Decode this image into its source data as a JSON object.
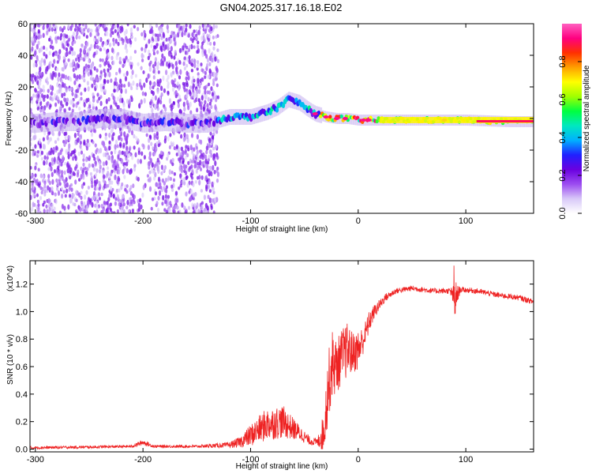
{
  "title": "GN04.2025.317.16.18.E02",
  "chart_data": [
    {
      "type": "heatmap",
      "xlabel": "Height of straight line (km)",
      "ylabel": "Frequency (Hz)",
      "xlim": [
        -305,
        163
      ],
      "ylim": [
        -60,
        60
      ],
      "xticks": [
        -300,
        -200,
        -100,
        0,
        100
      ],
      "yticks": [
        -60,
        -40,
        -20,
        0,
        20,
        40,
        60
      ],
      "colorbar": {
        "label": "Normalized spectral amplitude",
        "range": [
          0,
          1
        ],
        "ticks": [
          0.0,
          0.2,
          0.4,
          0.6,
          0.8
        ],
        "colors": [
          "#ffffff",
          "#d8c8f8",
          "#9c4cf0",
          "#6a00e0",
          "#2020ff",
          "#00b0ff",
          "#00e8c0",
          "#00ff40",
          "#a0ff00",
          "#ffff00",
          "#ffa000",
          "#ff3000",
          "#ff0080",
          "#ff60c0"
        ]
      },
      "ridge": [
        {
          "x": -300,
          "f": -3
        },
        {
          "x": -280,
          "f": -2
        },
        {
          "x": -260,
          "f": -2
        },
        {
          "x": -240,
          "f": 0
        },
        {
          "x": -220,
          "f": 0
        },
        {
          "x": -200,
          "f": -3
        },
        {
          "x": -180,
          "f": -2
        },
        {
          "x": -160,
          "f": -3
        },
        {
          "x": -140,
          "f": -3
        },
        {
          "x": -120,
          "f": 1
        },
        {
          "x": -100,
          "f": 1
        },
        {
          "x": -85,
          "f": 4
        },
        {
          "x": -75,
          "f": 7
        },
        {
          "x": -65,
          "f": 12
        },
        {
          "x": -55,
          "f": 10
        },
        {
          "x": -45,
          "f": 5
        },
        {
          "x": -40,
          "f": 3
        },
        {
          "x": -30,
          "f": 1
        },
        {
          "x": -20,
          "f": 0
        },
        {
          "x": -10,
          "f": 0
        },
        {
          "x": 0,
          "f": -1
        },
        {
          "x": 20,
          "f": -1
        },
        {
          "x": 60,
          "f": -1
        },
        {
          "x": 100,
          "f": -1
        },
        {
          "x": 140,
          "f": -2
        },
        {
          "x": 163,
          "f": -2
        }
      ]
    },
    {
      "type": "line",
      "xlabel": "Height of straight line (km)",
      "ylabel": "SNR (10 * v/v)",
      "yunit": "(x10^4)",
      "xlim": [
        -305,
        163
      ],
      "ylim": [
        -0.02,
        1.37
      ],
      "xticks": [
        -300,
        -200,
        -100,
        0,
        100
      ],
      "yticks": [
        0.0,
        0.2,
        0.4,
        0.6,
        0.8,
        1.0,
        1.2
      ],
      "series": [
        {
          "color": "#ee2222",
          "x": [
            -305,
            -250,
            -210,
            -200,
            -190,
            -150,
            -120,
            -110,
            -100,
            -85,
            -70,
            -55,
            -45,
            -38,
            -32,
            -28,
            -24,
            -20,
            -15,
            -10,
            -5,
            0,
            5,
            10,
            15,
            20,
            25,
            35,
            50,
            70,
            85,
            90,
            95,
            110,
            130,
            150,
            163
          ],
          "y": [
            0.01,
            0.015,
            0.02,
            0.05,
            0.02,
            0.02,
            0.03,
            0.05,
            0.1,
            0.18,
            0.2,
            0.12,
            0.06,
            0.05,
            0.12,
            0.45,
            0.62,
            0.6,
            0.68,
            0.72,
            0.7,
            0.72,
            0.8,
            0.92,
            1.0,
            1.05,
            1.1,
            1.15,
            1.17,
            1.15,
            1.15,
            1.1,
            1.16,
            1.15,
            1.12,
            1.1,
            1.07
          ],
          "noise": [
            0.01,
            0.01,
            0.01,
            0.02,
            0.01,
            0.01,
            0.02,
            0.04,
            0.08,
            0.12,
            0.12,
            0.06,
            0.03,
            0.03,
            0.15,
            0.25,
            0.25,
            0.2,
            0.2,
            0.2,
            0.15,
            0.15,
            0.1,
            0.08,
            0.05,
            0.04,
            0.03,
            0.02,
            0.02,
            0.02,
            0.02,
            0.1,
            0.02,
            0.02,
            0.02,
            0.02,
            0.02
          ]
        }
      ]
    }
  ]
}
